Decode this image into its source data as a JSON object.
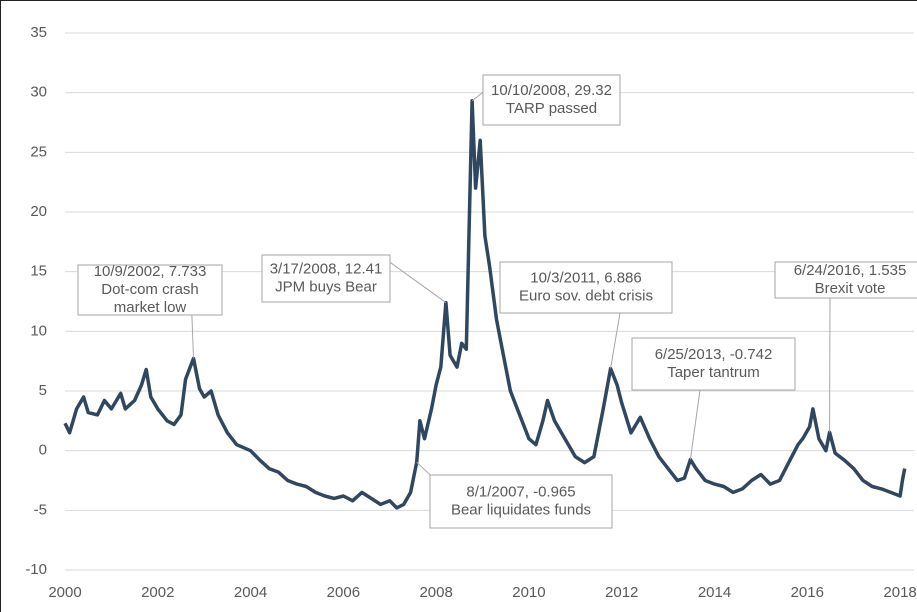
{
  "chart_data": {
    "type": "line",
    "x": [
      2000.0,
      2000.1,
      2000.25,
      2000.4,
      2000.5,
      2000.7,
      2000.85,
      2001.0,
      2001.2,
      2001.3,
      2001.5,
      2001.65,
      2001.75,
      2001.85,
      2002.0,
      2002.2,
      2002.35,
      2002.5,
      2002.6,
      2002.77,
      2002.9,
      2003.0,
      2003.15,
      2003.3,
      2003.5,
      2003.7,
      2004.0,
      2004.2,
      2004.4,
      2004.6,
      2004.8,
      2005.0,
      2005.2,
      2005.4,
      2005.6,
      2005.8,
      2006.0,
      2006.2,
      2006.4,
      2006.6,
      2006.8,
      2007.0,
      2007.15,
      2007.3,
      2007.45,
      2007.58,
      2007.65,
      2007.75,
      2007.9,
      2008.0,
      2008.1,
      2008.21,
      2008.3,
      2008.45,
      2008.55,
      2008.65,
      2008.775,
      2008.85,
      2008.95,
      2009.05,
      2009.15,
      2009.3,
      2009.45,
      2009.6,
      2009.75,
      2009.9,
      2010.0,
      2010.15,
      2010.3,
      2010.4,
      2010.55,
      2010.7,
      2010.85,
      2011.0,
      2011.2,
      2011.4,
      2011.6,
      2011.76,
      2011.9,
      2012.0,
      2012.2,
      2012.4,
      2012.6,
      2012.8,
      2013.0,
      2013.2,
      2013.35,
      2013.48,
      2013.6,
      2013.8,
      2014.0,
      2014.2,
      2014.4,
      2014.6,
      2014.8,
      2015.0,
      2015.2,
      2015.4,
      2015.6,
      2015.8,
      2015.9,
      2016.05,
      2016.12,
      2016.25,
      2016.4,
      2016.48,
      2016.6,
      2016.8,
      2017.0,
      2017.2,
      2017.4,
      2017.6,
      2017.8,
      2018.0,
      2018.05,
      2018.1
    ],
    "series": [
      {
        "color": "#2f4760",
        "values": [
          2.3,
          1.5,
          3.5,
          4.5,
          3.2,
          3.0,
          4.2,
          3.5,
          4.8,
          3.5,
          4.2,
          5.5,
          6.8,
          4.5,
          3.5,
          2.5,
          2.2,
          3.0,
          6.0,
          7.733,
          5.2,
          4.5,
          5.0,
          3.0,
          1.5,
          0.5,
          0.0,
          -0.8,
          -1.5,
          -1.8,
          -2.5,
          -2.8,
          -3.0,
          -3.5,
          -3.8,
          -4.0,
          -3.8,
          -4.2,
          -3.5,
          -4.0,
          -4.5,
          -4.2,
          -4.8,
          -4.5,
          -3.5,
          -0.965,
          2.5,
          1.0,
          3.5,
          5.5,
          7.0,
          12.41,
          8.0,
          7.0,
          9.0,
          8.5,
          29.32,
          22,
          26,
          18,
          15.5,
          11,
          8,
          5,
          3.5,
          2.0,
          1.0,
          0.5,
          2.5,
          4.2,
          2.5,
          1.5,
          0.5,
          -0.5,
          -1.0,
          -0.5,
          3.5,
          6.886,
          5.5,
          4.0,
          1.5,
          2.8,
          1.0,
          -0.5,
          -1.5,
          -2.5,
          -2.3,
          -0.742,
          -1.5,
          -2.5,
          -2.8,
          -3.0,
          -3.5,
          -3.2,
          -2.5,
          -2.0,
          -2.8,
          -2.5,
          -1.0,
          0.5,
          1.0,
          2.0,
          3.5,
          1.0,
          0.0,
          1.535,
          -0.2,
          -0.8,
          -1.5,
          -2.5,
          -3.0,
          -3.2,
          -3.5,
          -3.8,
          -2.5,
          -1.5
        ]
      }
    ],
    "xlim": [
      2000,
      2018.3
    ],
    "xticks": [
      2000,
      2002,
      2004,
      2006,
      2008,
      2010,
      2012,
      2014,
      2016,
      2018
    ],
    "ylim": [
      -10,
      35
    ],
    "yticks": [
      -10,
      -5,
      0,
      5,
      10,
      15,
      20,
      25,
      30,
      35
    ],
    "grid": true,
    "annotations": [
      {
        "text": [
          "10/9/2002, 7.733",
          "Dot-com crash",
          "market low"
        ],
        "x": 2002.77,
        "y": 7.733
      },
      {
        "text": [
          "3/17/2008, 12.41",
          "JPM buys Bear"
        ],
        "x": 2008.21,
        "y": 12.41
      },
      {
        "text": [
          "10/10/2008, 29.32",
          "TARP passed"
        ],
        "x": 2008.775,
        "y": 29.32
      },
      {
        "text": [
          "8/1/2007, -0.965",
          "Bear liquidates funds"
        ],
        "x": 2007.58,
        "y": -0.965
      },
      {
        "text": [
          "10/3/2011, 6.886",
          "Euro sov. debt crisis"
        ],
        "x": 2011.76,
        "y": 6.886
      },
      {
        "text": [
          "6/25/2013, -0.742",
          "Taper tantrum"
        ],
        "x": 2013.48,
        "y": -0.742
      },
      {
        "text": [
          "6/24/2016, 1.535",
          "Brexit vote"
        ],
        "x": 2016.48,
        "y": 1.535
      }
    ]
  }
}
